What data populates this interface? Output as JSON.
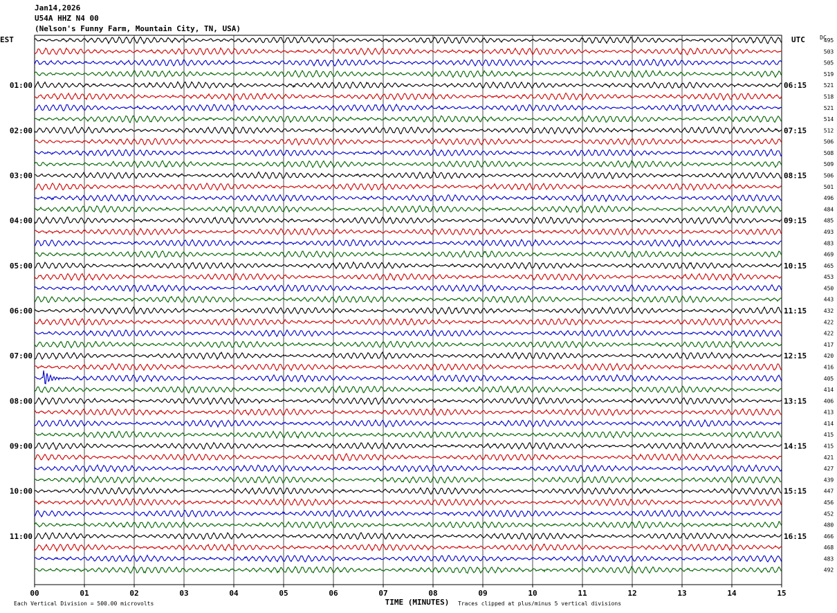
{
  "header": {
    "date": "Jan14,2026",
    "station": "U54A HHZ N4 00",
    "location": "(Nelson's Funny Farm, Mountain City, TN, USA)"
  },
  "axis": {
    "left_tz": "EST",
    "right_tz": "UTC",
    "dc_label": "DC",
    "xlabel": "TIME (MINUTES)",
    "x_ticks": [
      "00",
      "01",
      "02",
      "03",
      "04",
      "05",
      "06",
      "07",
      "08",
      "09",
      "10",
      "11",
      "12",
      "13",
      "14",
      "15"
    ]
  },
  "footer": {
    "scale_note": "Each Vertical Division =  500.00 microvolts",
    "clip_note": "Traces clipped at plus/minus 5 vertical divisions"
  },
  "colors": {
    "trace_cycle": [
      "#000000",
      "#d00000",
      "#0000cc",
      "#006400"
    ],
    "grid": "#000000"
  },
  "chart_data": {
    "type": "line",
    "description_type": "helicorder",
    "x_minutes_range": [
      0,
      15
    ],
    "rows": [
      {
        "left": "",
        "right": "",
        "dc": "495"
      },
      {
        "left": "",
        "right": "",
        "dc": "503"
      },
      {
        "left": "",
        "right": "",
        "dc": "505"
      },
      {
        "left": "",
        "right": "",
        "dc": "519"
      },
      {
        "left": "01:00",
        "right": "06:15",
        "dc": "521"
      },
      {
        "left": "",
        "right": "",
        "dc": "518"
      },
      {
        "left": "",
        "right": "",
        "dc": "521"
      },
      {
        "left": "",
        "right": "",
        "dc": "514"
      },
      {
        "left": "02:00",
        "right": "07:15",
        "dc": "512"
      },
      {
        "left": "",
        "right": "",
        "dc": "506"
      },
      {
        "left": "",
        "right": "",
        "dc": "508"
      },
      {
        "left": "",
        "right": "",
        "dc": "509"
      },
      {
        "left": "03:00",
        "right": "08:15",
        "dc": "506"
      },
      {
        "left": "",
        "right": "",
        "dc": "501"
      },
      {
        "left": "",
        "right": "",
        "dc": "496"
      },
      {
        "left": "",
        "right": "",
        "dc": "484"
      },
      {
        "left": "04:00",
        "right": "09:15",
        "dc": "485"
      },
      {
        "left": "",
        "right": "",
        "dc": "493"
      },
      {
        "left": "",
        "right": "",
        "dc": "483"
      },
      {
        "left": "",
        "right": "",
        "dc": "469"
      },
      {
        "left": "05:00",
        "right": "10:15",
        "dc": "465"
      },
      {
        "left": "",
        "right": "",
        "dc": "453"
      },
      {
        "left": "",
        "right": "",
        "dc": "450"
      },
      {
        "left": "",
        "right": "",
        "dc": "443"
      },
      {
        "left": "06:00",
        "right": "11:15",
        "dc": "432"
      },
      {
        "left": "",
        "right": "",
        "dc": "422"
      },
      {
        "left": "",
        "right": "",
        "dc": "422"
      },
      {
        "left": "",
        "right": "",
        "dc": "417"
      },
      {
        "left": "07:00",
        "right": "12:15",
        "dc": "420"
      },
      {
        "left": "",
        "right": "",
        "dc": "416"
      },
      {
        "left": "",
        "right": "",
        "dc": "405"
      },
      {
        "left": "",
        "right": "",
        "dc": "414"
      },
      {
        "left": "08:00",
        "right": "13:15",
        "dc": "406"
      },
      {
        "left": "",
        "right": "",
        "dc": "413"
      },
      {
        "left": "",
        "right": "",
        "dc": "414"
      },
      {
        "left": "",
        "right": "",
        "dc": "415"
      },
      {
        "left": "09:00",
        "right": "14:15",
        "dc": "415"
      },
      {
        "left": "",
        "right": "",
        "dc": "421"
      },
      {
        "left": "",
        "right": "",
        "dc": "427"
      },
      {
        "left": "",
        "right": "",
        "dc": "439"
      },
      {
        "left": "10:00",
        "right": "15:15",
        "dc": "447"
      },
      {
        "left": "",
        "right": "",
        "dc": "456"
      },
      {
        "left": "",
        "right": "",
        "dc": "452"
      },
      {
        "left": "",
        "right": "",
        "dc": "480"
      },
      {
        "left": "11:00",
        "right": "16:15",
        "dc": "466"
      },
      {
        "left": "",
        "right": "",
        "dc": "468"
      },
      {
        "left": "",
        "right": "",
        "dc": "483"
      },
      {
        "left": "",
        "right": "",
        "dc": "492"
      }
    ],
    "events": [
      {
        "row": 30,
        "minute": 0.2,
        "kind": "spike"
      }
    ]
  }
}
